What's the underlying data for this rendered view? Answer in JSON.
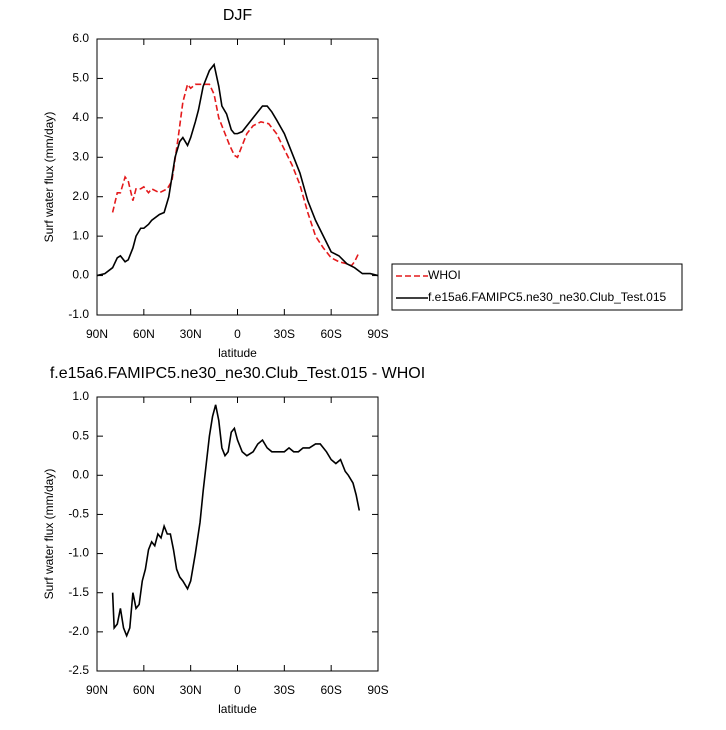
{
  "chart_data": [
    {
      "type": "line",
      "title": "DJF",
      "x_label": "latitude",
      "y_label": "Surf water flux (mm/day)",
      "xlim": [
        90,
        -90
      ],
      "xticks": [
        {
          "value": 90,
          "label": "90N"
        },
        {
          "value": 60,
          "label": "60N"
        },
        {
          "value": 30,
          "label": "30N"
        },
        0,
        {
          "value": -30,
          "label": "30S"
        },
        {
          "value": -60,
          "label": "60S"
        },
        {
          "value": -90,
          "label": "90S"
        }
      ],
      "ylim": [
        -1,
        6
      ],
      "yticks": [
        {
          "value": -1,
          "label": "-1.0"
        },
        {
          "value": 0,
          "label": "0.0"
        },
        {
          "value": 1,
          "label": "1.0"
        },
        {
          "value": 2,
          "label": "2.0"
        },
        {
          "value": 3,
          "label": "3.0"
        },
        {
          "value": 4,
          "label": "4.0"
        },
        {
          "value": 5,
          "label": "5.0"
        },
        {
          "value": 6,
          "label": "6.0"
        }
      ],
      "legend": "right",
      "series": [
        {
          "name": "WHOI",
          "color": "#e41a1c",
          "line_style": "dashed",
          "x": [
            80,
            77,
            75,
            72,
            70,
            67,
            65,
            62,
            60,
            57,
            55,
            50,
            45,
            42,
            38,
            35,
            32,
            30,
            27,
            22,
            18,
            15,
            12,
            8,
            5,
            2,
            0,
            -3,
            -6,
            -10,
            -15,
            -20,
            -25,
            -30,
            -35,
            -40,
            -45,
            -50,
            -55,
            -60,
            -65,
            -70,
            -73,
            -75,
            -78
          ],
          "values": [
            1.6,
            2.1,
            2.1,
            2.5,
            2.4,
            1.9,
            2.2,
            2.2,
            2.25,
            2.1,
            2.2,
            2.1,
            2.2,
            2.4,
            3.5,
            4.4,
            4.85,
            4.75,
            4.85,
            4.85,
            4.85,
            4.6,
            4.0,
            3.6,
            3.3,
            3.05,
            3.0,
            3.3,
            3.6,
            3.8,
            3.9,
            3.85,
            3.6,
            3.2,
            2.8,
            2.3,
            1.6,
            1.0,
            0.7,
            0.45,
            0.35,
            0.3,
            0.25,
            0.35,
            0.6
          ]
        },
        {
          "name": "f.e15a6.FAMIPC5.ne30_ne30.Club_Test.015",
          "color": "#000000",
          "line_style": "solid",
          "x": [
            90,
            85,
            80,
            77,
            75,
            72,
            70,
            67,
            65,
            62,
            60,
            57,
            55,
            50,
            47,
            44,
            42,
            40,
            37,
            35,
            32,
            30,
            27,
            25,
            22,
            18,
            15,
            12,
            10,
            7,
            4,
            2,
            0,
            -3,
            -7,
            -12,
            -16,
            -19,
            -22,
            -25,
            -30,
            -35,
            -40,
            -45,
            -50,
            -55,
            -60,
            -65,
            -70,
            -75,
            -80,
            -85,
            -90
          ],
          "values": [
            0,
            0.05,
            0.2,
            0.45,
            0.5,
            0.35,
            0.4,
            0.7,
            1.0,
            1.2,
            1.2,
            1.3,
            1.4,
            1.55,
            1.6,
            2.0,
            2.5,
            3.0,
            3.4,
            3.5,
            3.3,
            3.5,
            3.9,
            4.2,
            4.8,
            5.2,
            5.35,
            4.8,
            4.3,
            4.1,
            3.7,
            3.6,
            3.6,
            3.65,
            3.85,
            4.1,
            4.3,
            4.3,
            4.15,
            3.95,
            3.6,
            3.1,
            2.6,
            1.9,
            1.4,
            1.0,
            0.6,
            0.5,
            0.3,
            0.2,
            0.05,
            0.05,
            0
          ]
        }
      ]
    },
    {
      "type": "line",
      "title": "f.e15a6.FAMIPC5.ne30_ne30.Club_Test.015 - WHOI",
      "x_label": "latitude",
      "y_label": "Surf water flux (mm/day)",
      "xlim": [
        90,
        -90
      ],
      "xticks": [
        {
          "value": 90,
          "label": "90N"
        },
        {
          "value": 60,
          "label": "60N"
        },
        {
          "value": 30,
          "label": "30N"
        },
        0,
        {
          "value": -30,
          "label": "30S"
        },
        {
          "value": -60,
          "label": "60S"
        },
        {
          "value": -90,
          "label": "90S"
        }
      ],
      "ylim": [
        -2.5,
        1
      ],
      "yticks": [
        {
          "value": -2.5,
          "label": "-2.5"
        },
        {
          "value": -2,
          "label": "-2.0"
        },
        {
          "value": -1.5,
          "label": "-1.5"
        },
        {
          "value": -1,
          "label": "-1.0"
        },
        {
          "value": -0.5,
          "label": "-0.5"
        },
        {
          "value": 0,
          "label": "0.0"
        },
        {
          "value": 0.5,
          "label": "0.5"
        },
        {
          "value": 1,
          "label": "1.0"
        }
      ],
      "series": [
        {
          "color": "#000000",
          "line_style": "solid",
          "x": [
            80,
            79,
            77,
            75,
            73,
            71,
            69,
            67,
            65,
            63,
            61,
            59,
            57,
            55,
            53,
            51,
            49,
            47,
            45,
            43,
            41,
            39,
            37,
            35,
            32,
            30,
            27,
            24,
            22,
            20,
            18,
            16,
            14,
            12,
            10,
            8,
            6,
            4,
            2,
            0,
            -3,
            -6,
            -10,
            -13,
            -16,
            -19,
            -22,
            -26,
            -30,
            -33,
            -36,
            -39,
            -42,
            -46,
            -50,
            -53,
            -57,
            -60,
            -63,
            -66,
            -69,
            -71,
            -74,
            -76,
            -78
          ],
          "values": [
            -1.5,
            -1.95,
            -1.9,
            -1.7,
            -1.95,
            -2.05,
            -1.95,
            -1.5,
            -1.7,
            -1.65,
            -1.35,
            -1.2,
            -0.95,
            -0.85,
            -0.9,
            -0.75,
            -0.8,
            -0.65,
            -0.75,
            -0.75,
            -0.95,
            -1.2,
            -1.3,
            -1.35,
            -1.45,
            -1.35,
            -1.0,
            -0.6,
            -0.2,
            0.15,
            0.5,
            0.75,
            0.9,
            0.7,
            0.35,
            0.25,
            0.3,
            0.55,
            0.6,
            0.45,
            0.3,
            0.25,
            0.3,
            0.4,
            0.45,
            0.35,
            0.3,
            0.3,
            0.3,
            0.35,
            0.3,
            0.3,
            0.35,
            0.35,
            0.4,
            0.4,
            0.3,
            0.2,
            0.15,
            0.2,
            0.05,
            0.0,
            -0.1,
            -0.25,
            -0.45
          ]
        }
      ]
    }
  ]
}
